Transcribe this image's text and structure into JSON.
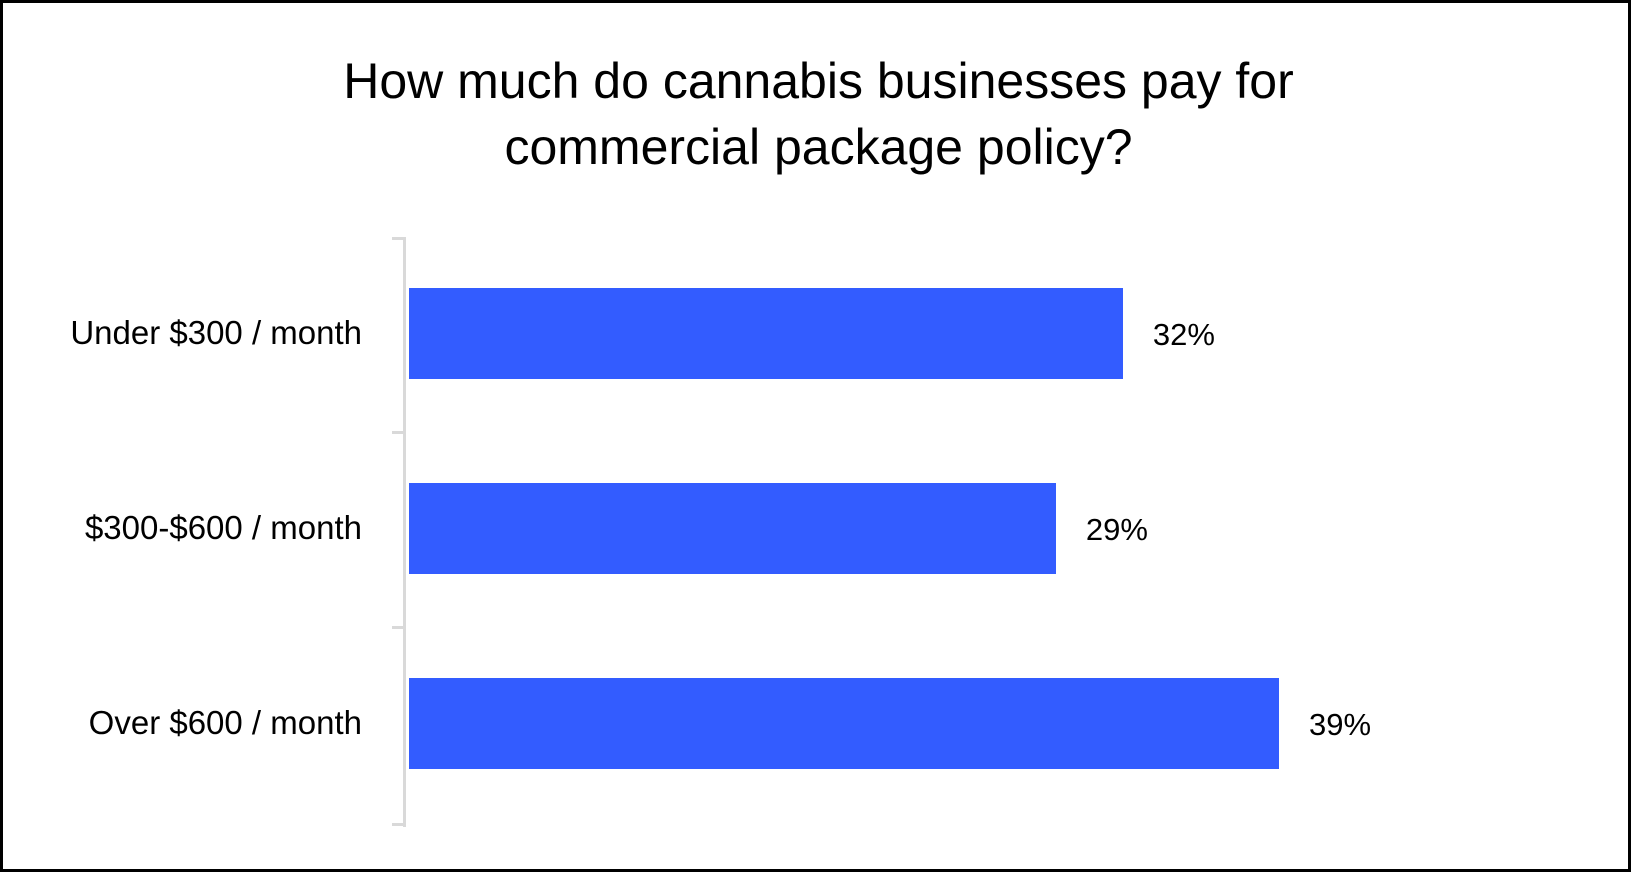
{
  "chart_data": {
    "type": "bar",
    "orientation": "horizontal",
    "title": "How much do cannabis businesses pay for commercial package policy?",
    "title_lines": [
      "How much do cannabis businesses pay for",
      "commercial package policy?"
    ],
    "categories": [
      "Under $300 / month",
      "$300-$600 / month",
      "Over $600 / month"
    ],
    "values": [
      32,
      29,
      39
    ],
    "value_labels": [
      "32%",
      "29%",
      "39%"
    ],
    "unit": "%",
    "xlabel": "",
    "ylabel": "",
    "xlim": [
      0,
      45
    ],
    "grid": false,
    "legend": null,
    "bar_color": "#335CFF"
  },
  "colors": {
    "bar": "#335CFF",
    "axis": "#D9D9D9",
    "border": "#000000",
    "background": "#FFFFFF",
    "text": "#000000"
  }
}
